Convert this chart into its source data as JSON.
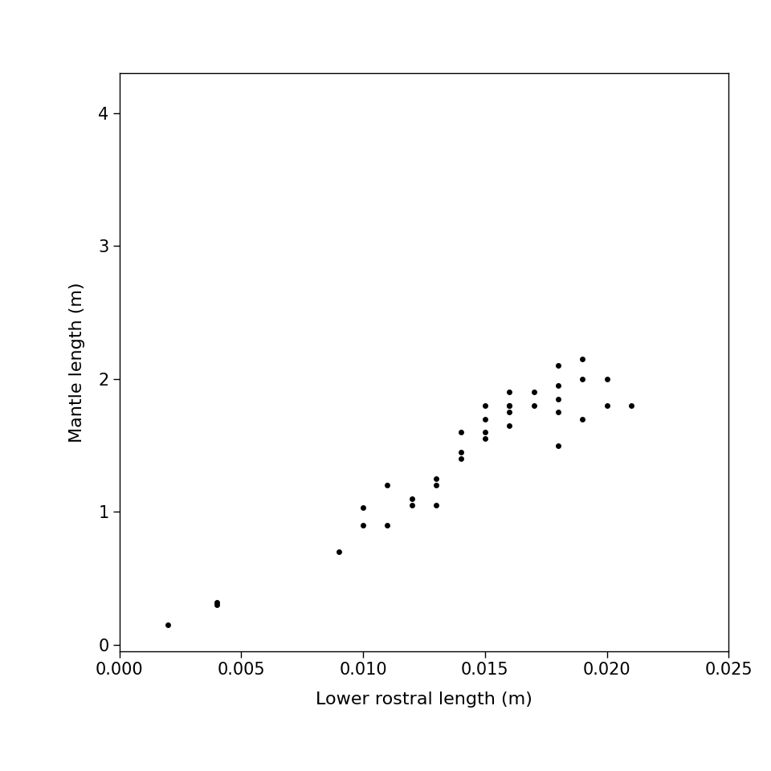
{
  "x": [
    0.002,
    0.004,
    0.004,
    0.009,
    0.01,
    0.01,
    0.011,
    0.011,
    0.012,
    0.012,
    0.013,
    0.013,
    0.013,
    0.014,
    0.014,
    0.014,
    0.015,
    0.015,
    0.015,
    0.015,
    0.016,
    0.016,
    0.016,
    0.016,
    0.016,
    0.017,
    0.017,
    0.018,
    0.018,
    0.018,
    0.018,
    0.018,
    0.019,
    0.019,
    0.019,
    0.02,
    0.02,
    0.021
  ],
  "y": [
    0.15,
    0.3,
    0.32,
    0.7,
    1.03,
    0.9,
    0.9,
    1.2,
    1.05,
    1.1,
    1.2,
    1.25,
    1.05,
    1.45,
    1.4,
    1.6,
    1.55,
    1.7,
    1.6,
    1.8,
    1.65,
    1.75,
    1.8,
    1.8,
    1.9,
    1.8,
    1.9,
    1.75,
    1.85,
    1.95,
    2.1,
    1.5,
    1.7,
    2.0,
    2.15,
    2.0,
    1.8,
    1.8
  ],
  "xlabel": "Lower rostral length (m)",
  "ylabel": "Mantle length (m)",
  "xlim": [
    0.0,
    0.025
  ],
  "ylim": [
    -0.05,
    4.3
  ],
  "xticks": [
    0.0,
    0.005,
    0.01,
    0.015,
    0.02,
    0.025
  ],
  "yticks": [
    0,
    1,
    2,
    3,
    4
  ],
  "marker_color": "black",
  "marker_size": 5,
  "background_color": "#ffffff",
  "xlabel_fontsize": 16,
  "ylabel_fontsize": 16,
  "tick_fontsize": 15
}
